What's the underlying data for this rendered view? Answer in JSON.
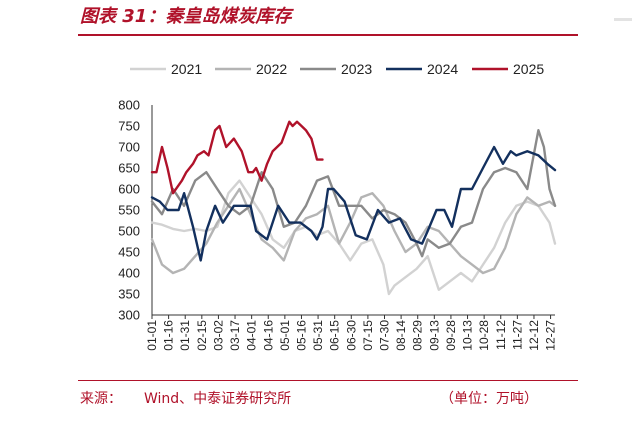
{
  "header": {
    "title": "图表 31：秦皇岛煤炭库存"
  },
  "footer": {
    "source_label": "来源：",
    "source_text": "Wind、中泰证券研究所",
    "unit": "（单位：万吨）"
  },
  "colors": {
    "accent": "#b0122a",
    "s2021": "#d2d2d2",
    "s2022": "#b4b4b4",
    "s2023": "#8a8a8a",
    "s2024": "#13305e",
    "s2025": "#b0122a"
  },
  "chart_data": {
    "type": "line",
    "title": "图表 31：秦皇岛煤炭库存",
    "xlabel": "",
    "ylabel": "",
    "ylim": [
      300,
      800
    ],
    "yticks": [
      300,
      350,
      400,
      450,
      500,
      550,
      600,
      650,
      700,
      750,
      800
    ],
    "xlim": [
      1,
      365
    ],
    "x_unit": "day of year",
    "xticks": [
      {
        "label": "01-01",
        "day": 1
      },
      {
        "label": "01-16",
        "day": 16
      },
      {
        "label": "01-31",
        "day": 31
      },
      {
        "label": "02-15",
        "day": 46
      },
      {
        "label": "03-02",
        "day": 61
      },
      {
        "label": "03-17",
        "day": 76
      },
      {
        "label": "04-01",
        "day": 91
      },
      {
        "label": "04-16",
        "day": 106
      },
      {
        "label": "05-01",
        "day": 121
      },
      {
        "label": "05-16",
        "day": 136
      },
      {
        "label": "05-31",
        "day": 151
      },
      {
        "label": "06-15",
        "day": 166
      },
      {
        "label": "06-30",
        "day": 181
      },
      {
        "label": "07-15",
        "day": 196
      },
      {
        "label": "07-30",
        "day": 211
      },
      {
        "label": "08-14",
        "day": 226
      },
      {
        "label": "08-29",
        "day": 241
      },
      {
        "label": "09-13",
        "day": 256
      },
      {
        "label": "09-28",
        "day": 271
      },
      {
        "label": "10-13",
        "day": 286
      },
      {
        "label": "10-28",
        "day": 301
      },
      {
        "label": "11-12",
        "day": 316
      },
      {
        "label": "11-27",
        "day": 331
      },
      {
        "label": "12-12",
        "day": 346
      },
      {
        "label": "12-27",
        "day": 361
      }
    ],
    "legend": "top",
    "grid": false,
    "series": [
      {
        "name": "2021",
        "color": "#d2d2d2",
        "x": [
          1,
          10,
          20,
          30,
          40,
          50,
          60,
          70,
          80,
          90,
          100,
          110,
          120,
          130,
          140,
          150,
          160,
          170,
          180,
          190,
          200,
          210,
          215,
          220,
          230,
          240,
          250,
          260,
          270,
          280,
          290,
          300,
          310,
          320,
          330,
          340,
          350,
          360,
          365
        ],
        "y": [
          520,
          515,
          505,
          500,
          505,
          500,
          510,
          590,
          620,
          580,
          540,
          480,
          460,
          500,
          510,
          490,
          500,
          470,
          430,
          470,
          480,
          420,
          350,
          370,
          390,
          410,
          440,
          360,
          380,
          400,
          380,
          420,
          460,
          520,
          560,
          570,
          560,
          520,
          470
        ]
      },
      {
        "name": "2022",
        "color": "#b4b4b4",
        "x": [
          1,
          10,
          20,
          30,
          40,
          50,
          60,
          70,
          80,
          90,
          100,
          110,
          120,
          130,
          140,
          150,
          160,
          170,
          180,
          190,
          200,
          210,
          220,
          230,
          240,
          250,
          260,
          270,
          280,
          290,
          300,
          310,
          320,
          330,
          340,
          350,
          360,
          365
        ],
        "y": [
          480,
          420,
          400,
          410,
          440,
          470,
          520,
          560,
          600,
          540,
          480,
          460,
          430,
          500,
          530,
          540,
          560,
          470,
          520,
          580,
          590,
          560,
          500,
          450,
          470,
          510,
          500,
          470,
          440,
          420,
          400,
          410,
          460,
          540,
          580,
          560,
          570,
          560
        ]
      },
      {
        "name": "2023",
        "color": "#8a8a8a",
        "x": [
          1,
          10,
          20,
          30,
          40,
          50,
          60,
          70,
          80,
          90,
          100,
          110,
          120,
          130,
          140,
          150,
          160,
          170,
          180,
          190,
          200,
          210,
          220,
          230,
          240,
          245,
          250,
          260,
          270,
          280,
          290,
          300,
          310,
          320,
          330,
          340,
          350,
          355,
          360,
          365
        ],
        "y": [
          570,
          540,
          600,
          560,
          620,
          640,
          600,
          560,
          540,
          560,
          640,
          600,
          510,
          520,
          560,
          620,
          630,
          560,
          560,
          560,
          530,
          550,
          540,
          520,
          470,
          440,
          480,
          460,
          470,
          510,
          520,
          600,
          640,
          650,
          640,
          600,
          740,
          700,
          600,
          560
        ]
      },
      {
        "name": "2024",
        "color": "#13305e",
        "x": [
          1,
          8,
          15,
          25,
          30,
          38,
          45,
          50,
          58,
          65,
          75,
          85,
          90,
          95,
          105,
          115,
          125,
          135,
          145,
          150,
          155,
          160,
          165,
          175,
          185,
          195,
          205,
          215,
          225,
          235,
          245,
          250,
          258,
          265,
          272,
          280,
          290,
          300,
          310,
          318,
          325,
          330,
          340,
          350,
          358,
          365
        ],
        "y": [
          580,
          570,
          550,
          550,
          590,
          510,
          430,
          500,
          560,
          520,
          560,
          560,
          560,
          500,
          480,
          560,
          520,
          520,
          500,
          480,
          510,
          600,
          600,
          570,
          490,
          480,
          550,
          520,
          530,
          480,
          470,
          500,
          550,
          550,
          510,
          600,
          600,
          650,
          700,
          660,
          690,
          680,
          690,
          680,
          660,
          645
        ]
      },
      {
        "name": "2025",
        "color": "#b0122a",
        "x": [
          1,
          5,
          10,
          15,
          20,
          28,
          32,
          38,
          42,
          48,
          52,
          58,
          62,
          68,
          75,
          82,
          88,
          92,
          95,
          100,
          105,
          110,
          118,
          125,
          128,
          132,
          136,
          140,
          145,
          148,
          150,
          152,
          155
        ],
        "y": [
          640,
          640,
          700,
          650,
          590,
          620,
          640,
          660,
          680,
          690,
          680,
          740,
          750,
          700,
          720,
          690,
          640,
          640,
          650,
          620,
          660,
          690,
          710,
          760,
          750,
          760,
          750,
          740,
          720,
          690,
          670,
          670,
          670
        ]
      }
    ]
  }
}
